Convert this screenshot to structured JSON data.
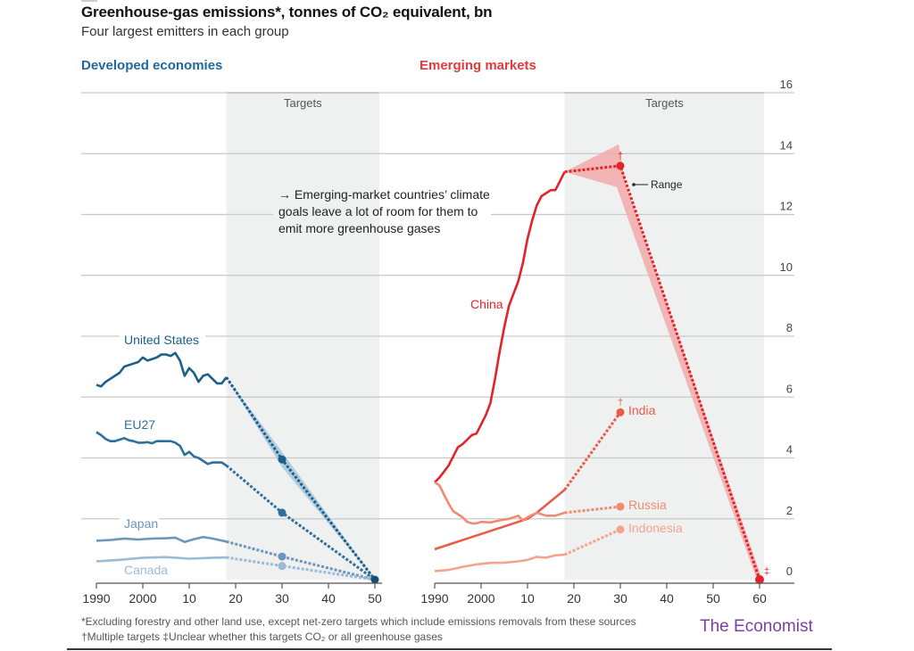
{
  "header": {
    "title": "Greenhouse-gas emissions*, tonnes of CO₂ equivalent, bn",
    "subtitle": "Four largest emitters in each group"
  },
  "footnotes": {
    "line1": "*Excluding forestry and other land use, except net-zero targets which include emissions removals from these sources",
    "line2": "†Multiple targets ‡Unclear whether this targets CO₂ or all greenhouse gases"
  },
  "brand": "The Economist",
  "annotation": {
    "text_lines": [
      "→ Emerging-market countries’ climate",
      "goals leave a lot of room for them to",
      "emit more greenhouse gases"
    ],
    "range_label": "Range"
  },
  "colors": {
    "us": "#1b5f8a",
    "eu": "#2f6f9e",
    "japan": "#6b96bd",
    "canada": "#9bbad6",
    "china": "#e3232a",
    "india": "#ea5a48",
    "russia": "#ef8a73",
    "indonesia": "#f4a48e",
    "dev_range": "#9cc0dc",
    "em_range": "#f2a9a9",
    "targets_shade": "#eff0f0",
    "grid": "#c9c9c9"
  },
  "chart_data": [
    {
      "type": "line",
      "panel": "left",
      "title": "Developed economies",
      "xlabel": "",
      "ylabel": "Greenhouse-gas emissions, tonnes of CO2 equivalent, bn",
      "xlim": [
        1990,
        2050
      ],
      "ylim": [
        0,
        16
      ],
      "x_ticks": [
        1990,
        2000,
        2010,
        2020,
        2030,
        2040,
        2050
      ],
      "x_tick_labels": [
        "1990",
        "2000",
        "10",
        "20",
        "30",
        "40",
        "50"
      ],
      "y_ticks": [
        0,
        2,
        4,
        6,
        8,
        10,
        12,
        14,
        16
      ],
      "grid": true,
      "targets_band": {
        "label": "Targets",
        "from": 2018,
        "to": 2050
      },
      "series": [
        {
          "name": "United States",
          "key": "us",
          "x": [
            1990,
            1991,
            1992,
            1993,
            1994,
            1995,
            1996,
            1997,
            1998,
            1999,
            2000,
            2001,
            2002,
            2003,
            2004,
            2005,
            2006,
            2007,
            2008,
            2009,
            2010,
            2011,
            2012,
            2013,
            2014,
            2015,
            2016,
            2017,
            2018
          ],
          "y": [
            6.4,
            6.35,
            6.5,
            6.6,
            6.7,
            6.8,
            7.0,
            7.05,
            7.1,
            7.15,
            7.3,
            7.2,
            7.25,
            7.3,
            7.4,
            7.4,
            7.35,
            7.45,
            7.2,
            6.7,
            6.95,
            6.8,
            6.5,
            6.7,
            6.75,
            6.6,
            6.45,
            6.45,
            6.65
          ],
          "target": {
            "x": [
              2018,
              2030,
              2050
            ],
            "y": [
              6.65,
              3.95,
              0
            ]
          },
          "range_2030": [
            3.7,
            4.2
          ]
        },
        {
          "name": "EU27",
          "key": "eu",
          "x": [
            1990,
            1991,
            1992,
            1993,
            1994,
            1995,
            1996,
            1997,
            1998,
            1999,
            2000,
            2001,
            2002,
            2003,
            2004,
            2005,
            2006,
            2007,
            2008,
            2009,
            2010,
            2011,
            2012,
            2013,
            2014,
            2015,
            2016,
            2017,
            2018
          ],
          "y": [
            4.85,
            4.75,
            4.62,
            4.55,
            4.55,
            4.6,
            4.65,
            4.58,
            4.55,
            4.5,
            4.5,
            4.52,
            4.48,
            4.55,
            4.55,
            4.55,
            4.55,
            4.5,
            4.4,
            4.1,
            4.2,
            4.05,
            4.0,
            3.9,
            3.8,
            3.85,
            3.85,
            3.85,
            3.75
          ],
          "target": {
            "x": [
              2018,
              2030,
              2050
            ],
            "y": [
              3.75,
              2.2,
              0
            ]
          }
        },
        {
          "name": "Japan",
          "key": "japan",
          "x": [
            1990,
            1993,
            1996,
            1999,
            2002,
            2005,
            2007,
            2009,
            2011,
            2013,
            2015,
            2018
          ],
          "y": [
            1.28,
            1.3,
            1.35,
            1.32,
            1.35,
            1.36,
            1.38,
            1.24,
            1.33,
            1.4,
            1.35,
            1.25
          ],
          "target": {
            "x": [
              2018,
              2030,
              2050
            ],
            "y": [
              1.25,
              0.76,
              0
            ]
          }
        },
        {
          "name": "Canada",
          "key": "canada",
          "x": [
            1990,
            1995,
            2000,
            2005,
            2010,
            2015,
            2018
          ],
          "y": [
            0.6,
            0.65,
            0.72,
            0.74,
            0.69,
            0.72,
            0.73
          ],
          "target": {
            "x": [
              2018,
              2030,
              2050
            ],
            "y": [
              0.73,
              0.45,
              0
            ]
          }
        }
      ]
    },
    {
      "type": "line",
      "panel": "right",
      "title": "Emerging markets",
      "xlabel": "",
      "ylabel": "Greenhouse-gas emissions, tonnes of CO2 equivalent, bn",
      "xlim": [
        1990,
        2060
      ],
      "ylim": [
        0,
        16
      ],
      "x_ticks": [
        1990,
        2000,
        2010,
        2020,
        2030,
        2040,
        2050,
        2060
      ],
      "x_tick_labels": [
        "1990",
        "2000",
        "10",
        "20",
        "30",
        "40",
        "50",
        "60"
      ],
      "y_ticks": [
        0,
        2,
        4,
        6,
        8,
        10,
        12,
        14,
        16
      ],
      "y_tick_labels": [
        "0",
        "2",
        "4",
        "6",
        "8",
        "10",
        "12",
        "14",
        "16"
      ],
      "y_axis_side": "right",
      "grid": true,
      "targets_band": {
        "label": "Targets",
        "from": 2018,
        "to": 2061
      },
      "series": [
        {
          "name": "China",
          "key": "china",
          "x": [
            1990,
            1991,
            1992,
            1993,
            1994,
            1995,
            1996,
            1997,
            1998,
            1999,
            2000,
            2001,
            2002,
            2003,
            2004,
            2005,
            2006,
            2007,
            2008,
            2009,
            2010,
            2011,
            2012,
            2013,
            2014,
            2015,
            2016,
            2017,
            2018
          ],
          "y": [
            3.2,
            3.35,
            3.55,
            3.75,
            4.05,
            4.35,
            4.45,
            4.6,
            4.75,
            4.8,
            5.1,
            5.4,
            5.8,
            6.6,
            7.5,
            8.3,
            9.0,
            9.4,
            9.8,
            10.4,
            11.2,
            11.8,
            12.3,
            12.6,
            12.7,
            12.8,
            12.8,
            13.1,
            13.4
          ],
          "target": {
            "x": [
              2018,
              2030,
              2060
            ],
            "y": [
              13.4,
              13.6,
              0
            ],
            "marker_2030": "†",
            "marker_2060": "‡"
          },
          "range_2030": [
            12.9,
            14.3
          ]
        },
        {
          "name": "India",
          "key": "india",
          "x": [
            1990,
            1995,
            2000,
            2005,
            2010,
            2012,
            2014,
            2016,
            2018
          ],
          "y": [
            1.0,
            1.25,
            1.5,
            1.75,
            2.0,
            2.2,
            2.45,
            2.7,
            2.95
          ],
          "target": {
            "x": [
              2018,
              2030
            ],
            "y": [
              2.95,
              5.5
            ],
            "marker_2030": "†"
          }
        },
        {
          "name": "Russia",
          "key": "russia",
          "x": [
            1990,
            1991,
            1992,
            1993,
            1994,
            1995,
            1996,
            1997,
            1998,
            1999,
            2000,
            2002,
            2004,
            2006,
            2008,
            2009,
            2010,
            2012,
            2014,
            2016,
            2018
          ],
          "y": [
            3.2,
            3.1,
            2.8,
            2.5,
            2.25,
            2.15,
            2.05,
            1.9,
            1.85,
            1.85,
            1.9,
            1.88,
            1.95,
            2.0,
            2.1,
            1.95,
            2.05,
            2.2,
            2.1,
            2.1,
            2.2
          ],
          "target": {
            "x": [
              2018,
              2030
            ],
            "y": [
              2.2,
              2.4
            ]
          }
        },
        {
          "name": "Indonesia",
          "key": "indonesia",
          "x": [
            1990,
            1993,
            1996,
            1999,
            2002,
            2005,
            2008,
            2010,
            2012,
            2014,
            2016,
            2018
          ],
          "y": [
            0.28,
            0.32,
            0.42,
            0.5,
            0.55,
            0.56,
            0.6,
            0.65,
            0.75,
            0.72,
            0.8,
            0.82
          ],
          "target": {
            "x": [
              2018,
              2030
            ],
            "y": [
              0.82,
              1.65
            ]
          }
        }
      ]
    }
  ]
}
